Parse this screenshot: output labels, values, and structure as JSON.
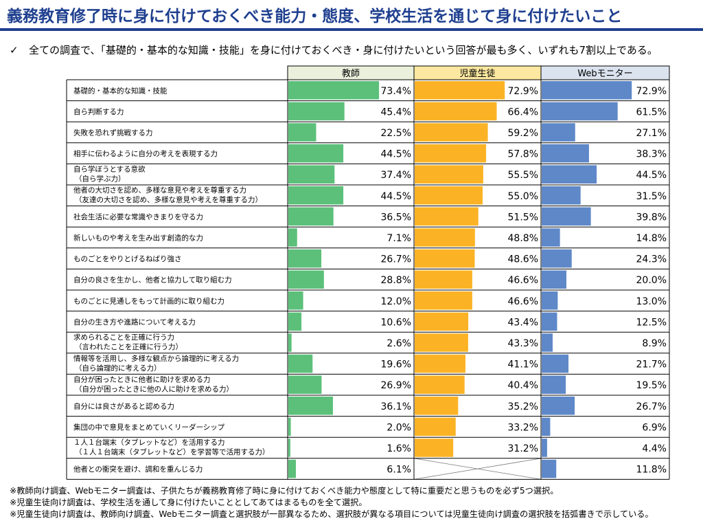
{
  "title": "義務教育修了時に身に付けておくべき能力・態度、学校生活を通じて身に付けたいこと",
  "summary": {
    "check_icon": "check-icon",
    "check_glyph": "✓",
    "text": "全ての調査で、「基礎的・基本的な知識・技能」を身に付けておくべき・身に付けたいという回答が最も多く、いずれも7割以上である。"
  },
  "chart_data": {
    "type": "bar",
    "orientation": "horizontal",
    "value_format": "percent_one_decimal",
    "series": [
      {
        "name": "教師",
        "color": "#5cc07a",
        "header_bg": "#eaf0dc",
        "values": [
          73.4,
          45.4,
          22.5,
          44.5,
          37.4,
          44.5,
          36.5,
          7.1,
          26.7,
          28.8,
          12.0,
          10.6,
          2.6,
          19.6,
          26.9,
          36.1,
          2.0,
          1.6,
          6.1
        ]
      },
      {
        "name": "児童生徒",
        "color": "#fbb325",
        "header_bg": "#fce8a0",
        "values": [
          72.9,
          66.4,
          59.2,
          57.8,
          55.5,
          55.0,
          51.5,
          48.8,
          48.6,
          46.6,
          46.6,
          43.4,
          43.3,
          41.1,
          40.4,
          35.2,
          33.2,
          31.2,
          null
        ]
      },
      {
        "name": "Webモニター",
        "color": "#5e88c8",
        "header_bg": "#dbe3ef",
        "values": [
          72.9,
          61.5,
          27.1,
          38.3,
          44.5,
          31.5,
          39.8,
          14.8,
          24.3,
          20.0,
          13.0,
          12.5,
          8.9,
          21.7,
          19.5,
          26.7,
          6.9,
          4.4,
          11.8
        ]
      }
    ],
    "categories": [
      [
        "基礎的・基本的な知識・技能"
      ],
      [
        "自ら判断する力"
      ],
      [
        "失敗を恐れず挑戦する力"
      ],
      [
        "相手に伝わるように自分の考えを表現する力"
      ],
      [
        "自ら学ぼうとする意欲",
        "（自ら学ぶ力）"
      ],
      [
        "他者の大切さを認め、多様な意見や考えを尊重する力",
        "（友達の大切さを認め、多様な意見や考えを尊重する力）"
      ],
      [
        "社会生活に必要な常識やきまりを守る力"
      ],
      [
        "新しいものや考えを生み出す創造的な力"
      ],
      [
        "ものごとをやりとげるねばり強さ"
      ],
      [
        "自分の良さを生かし、他者と協力して取り組む力"
      ],
      [
        "ものごとに見通しをもって計画的に取り組む力"
      ],
      [
        "自分の生き方や進路について考える力"
      ],
      [
        "求められることを正確に行う力",
        "（言われたことを正確に行う力）"
      ],
      [
        "情報等を活用し、多様な観点から論理的に考える力",
        "（自ら論理的に考える力）"
      ],
      [
        "自分が困ったときに他者に助けを求める力",
        "（自分が困ったときに他の人に助けを求める力）"
      ],
      [
        "自分には良さがあると認める力"
      ],
      [
        "集団の中で意見をまとめていくリーダーシップ"
      ],
      [
        "１人１台端末（タブレットなど）を活用する力",
        "（１人１台端末（タブレットなど）を学習等で活用する力）"
      ],
      [
        "他者との衝突を避け、調和を重んじる力"
      ]
    ]
  },
  "notes": [
    "※教師向け調査、Webモニター調査は、子供たちが義務教育修了時に身に付けておくべき能力や態度として特に重要だと思うものを必ず5つ選択。",
    "※児童生徒向け調査は、学校生活を通して身に付けたいこととしてあてはまるものを全て選択。",
    "※児童生徒向け調査は、教師向け調査、Webモニター調査と選択肢が一部異なるため、選択肢が異なる項目については児童生徒向け調査の選択肢を括弧書きで示している。"
  ]
}
